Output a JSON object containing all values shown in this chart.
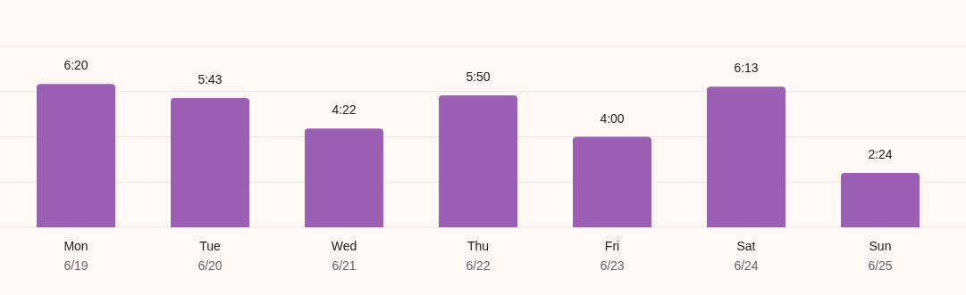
{
  "chart_data": {
    "type": "bar",
    "categories": [
      "Mon\n6/19",
      "Tue\n6/20",
      "Wed\n6/21",
      "Thu\n6/22",
      "Fri\n6/23",
      "Sat\n6/24",
      "Sun\n6/25"
    ],
    "values": [
      6.333,
      5.717,
      4.367,
      5.833,
      4,
      6.217,
      2.4
    ],
    "value_labels": [
      "6:20",
      "5:43",
      "4:22",
      "5:50",
      "4:00",
      "6:13",
      "2:24"
    ],
    "color": "#9b5fb4",
    "ylim": [
      0,
      8
    ],
    "yticks": [
      {
        "value": 0,
        "label": null
      },
      {
        "value": 2,
        "label": null
      },
      {
        "value": 4,
        "label": null
      },
      {
        "value": 6,
        "label": null
      },
      {
        "value": 8,
        "label": null
      }
    ],
    "grid": "y"
  }
}
